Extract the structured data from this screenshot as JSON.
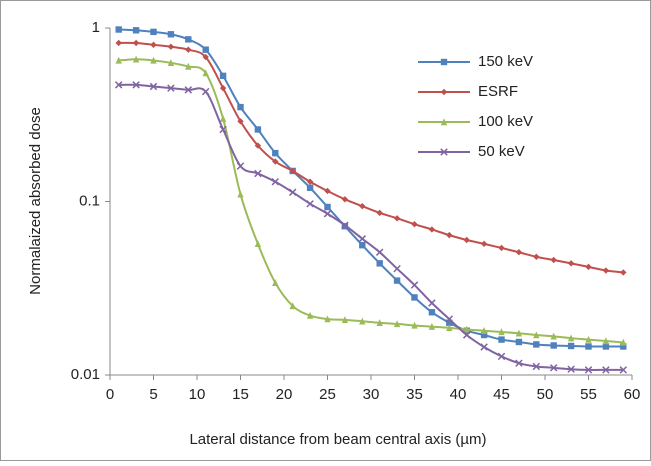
{
  "chart_data": {
    "type": "line",
    "x_label": "Lateral distance from beam central axis (µm)",
    "y_label": "Normalaized absorbed dose",
    "x": [
      1,
      3,
      5,
      7,
      9,
      11,
      13,
      15,
      17,
      19,
      21,
      23,
      25,
      27,
      29,
      31,
      33,
      35,
      37,
      39,
      41,
      43,
      45,
      47,
      49,
      51,
      53,
      55,
      57,
      59
    ],
    "series": [
      {
        "name": "150 keV",
        "color": "#4f81bd",
        "marker": "square",
        "values": [
          0.98,
          0.97,
          0.95,
          0.92,
          0.86,
          0.75,
          0.53,
          0.35,
          0.26,
          0.19,
          0.15,
          0.12,
          0.093,
          0.072,
          0.056,
          0.044,
          0.035,
          0.028,
          0.023,
          0.02,
          0.018,
          0.017,
          0.016,
          0.0155,
          0.015,
          0.0148,
          0.0147,
          0.0146,
          0.0146,
          0.0146
        ]
      },
      {
        "name": "ESRF",
        "color": "#c0504d",
        "marker": "diamond",
        "values": [
          0.82,
          0.82,
          0.8,
          0.78,
          0.75,
          0.68,
          0.45,
          0.29,
          0.21,
          0.17,
          0.15,
          0.13,
          0.115,
          0.103,
          0.094,
          0.086,
          0.08,
          0.074,
          0.069,
          0.064,
          0.06,
          0.057,
          0.054,
          0.051,
          0.048,
          0.046,
          0.044,
          0.042,
          0.04,
          0.039
        ]
      },
      {
        "name": "100 keV",
        "color": "#9bbb59",
        "marker": "triangle",
        "values": [
          0.65,
          0.66,
          0.65,
          0.63,
          0.6,
          0.55,
          0.3,
          0.11,
          0.057,
          0.034,
          0.025,
          0.022,
          0.021,
          0.0208,
          0.0204,
          0.02,
          0.0197,
          0.0193,
          0.019,
          0.0187,
          0.0183,
          0.018,
          0.0177,
          0.0174,
          0.017,
          0.0167,
          0.0163,
          0.016,
          0.0157,
          0.0154
        ]
      },
      {
        "name": "50 keV",
        "color": "#8064a2",
        "marker": "cross",
        "values": [
          0.47,
          0.47,
          0.46,
          0.45,
          0.44,
          0.43,
          0.26,
          0.16,
          0.145,
          0.13,
          0.113,
          0.097,
          0.085,
          0.073,
          0.061,
          0.051,
          0.041,
          0.033,
          0.026,
          0.021,
          0.017,
          0.0145,
          0.0128,
          0.0117,
          0.0112,
          0.011,
          0.0108,
          0.0107,
          0.0107,
          0.0107
        ]
      }
    ],
    "xlim": [
      0,
      60
    ],
    "xticks": [
      0,
      5,
      10,
      15,
      20,
      25,
      30,
      35,
      40,
      45,
      50,
      55,
      60
    ],
    "ylim": [
      0.01,
      1
    ],
    "yticks": [
      0.01,
      0.1,
      1
    ],
    "log_y": true,
    "legend": "upper right"
  }
}
